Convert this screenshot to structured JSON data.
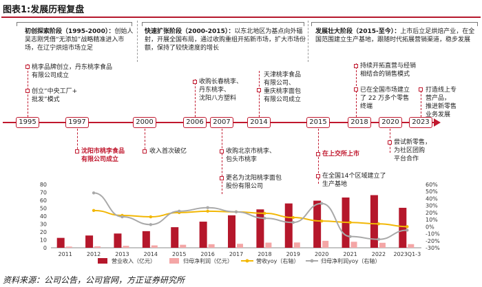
{
  "figure": {
    "title": "图表1:发展历程复盘",
    "source": "资料来源：公司公告，公司官网，方正证券研究所"
  },
  "stages": [
    {
      "title": "初创探索阶段（1995-2000）：",
      "text": "创始人吴志刚凭借“无添加”战略精准进入市场，在辽宁烘焙市场立足"
    },
    {
      "title": "快速扩张阶段（2000-2015）：",
      "text": "以东北地区为基点向外辐射，开展全国布局，通过收购重组开拓新市场，扩大市场份额，保持了较快速度的增长"
    },
    {
      "title": "发展壮大阶段（2015-至今）：",
      "text": "上市后立足烘焙产业，在全国范围建立生产基地，跟随时代拓展营销渠道，稳步发展"
    }
  ],
  "timeline": {
    "years": [
      "1995",
      "1997",
      "2000",
      "2006",
      "2007",
      "2014",
      "2015",
      "2018",
      "2020",
      "2023"
    ],
    "above": [
      {
        "lines": [
          "桃李品牌创立，丹东桃李食品",
          "有限公司成立"
        ]
      },
      {
        "lines": [
          "创立“中央工厂+",
          "批发”模式"
        ]
      },
      {
        "lines": [
          "收购长春桃李、",
          "丹东桃李、",
          "沈阳八方塑料"
        ]
      },
      {
        "lines": [
          "天津桃李食品",
          "有限公司、",
          "重庆桃李面包",
          "有限公司成立"
        ]
      },
      {
        "lines": [
          "持续开拓直营与经销",
          "相结合的销售模式"
        ]
      },
      {
        "lines": [
          "已在全国市场建立",
          "了 22 万多个零售",
          "终端"
        ]
      },
      {
        "lines": [
          "打造线上专",
          "营产品，",
          "推进新零售",
          "业务发展"
        ]
      }
    ],
    "below": [
      {
        "lines": [
          "沈阳市桃李食品",
          "有限公司成立"
        ],
        "highlight": true
      },
      {
        "lines": [
          "收入首次破亿"
        ],
        "highlight": false
      },
      {
        "lines": [
          "收购北京市桃李、",
          "包头市桃李"
        ],
        "highlight": false
      },
      {
        "lines": [
          "更名为沈阳桃李面包",
          "股份有限公司"
        ],
        "highlight": false
      },
      {
        "lines": [
          "在上交所上市"
        ],
        "highlight": true
      },
      {
        "lines": [
          "在全国14个区域建立了",
          "生产基地"
        ],
        "highlight": false
      },
      {
        "lines": [
          "尝试新零售，",
          "为社区团购",
          "平台合作"
        ],
        "highlight": false
      }
    ]
  },
  "chart_data": {
    "type": "bar",
    "categories": [
      "2011",
      "2012",
      "2013",
      "2014",
      "2015",
      "2016",
      "2017",
      "2018",
      "2019",
      "2020",
      "2021",
      "2022",
      "2023Q1-3"
    ],
    "series": [
      {
        "name": "营业收入（亿元）",
        "kind": "bar",
        "axis": "left",
        "color": "#b5172b",
        "values": [
          12.5,
          15.5,
          18.0,
          21.0,
          26.0,
          33.0,
          41.0,
          48.5,
          56.0,
          59.5,
          63.5,
          66.5,
          50.5
        ]
      },
      {
        "name": "归母净利润（亿元）",
        "kind": "bar",
        "axis": "left",
        "color": "#f4a6a6",
        "values": [
          1.5,
          1.8,
          2.5,
          3.0,
          3.8,
          4.5,
          5.0,
          6.5,
          6.7,
          8.8,
          7.6,
          6.3,
          4.6
        ]
      },
      {
        "name": "营收yoy（右轴）",
        "kind": "line",
        "axis": "right",
        "color": "#f2b705",
        "values": [
          null,
          23,
          16,
          14,
          20,
          22,
          21,
          19,
          13,
          8,
          6,
          4,
          0
        ]
      },
      {
        "name": "归母净利润yoy（右轴）",
        "kind": "line",
        "axis": "right",
        "color": "#a9a9a9",
        "values": [
          null,
          48,
          14,
          3,
          22,
          27,
          21,
          12,
          6,
          33,
          -14,
          -18,
          -5
        ]
      }
    ],
    "yleft": {
      "min": 0,
      "max": 80,
      "ticks": [
        0,
        10,
        20,
        30,
        40,
        50,
        60,
        70,
        80
      ]
    },
    "yright": {
      "min": -30,
      "max": 60,
      "ticks": [
        "-30%",
        "-20%",
        "-10%",
        "0%",
        "10%",
        "20%",
        "30%",
        "40%",
        "50%",
        "60%"
      ]
    },
    "legend_position": "bottom"
  }
}
